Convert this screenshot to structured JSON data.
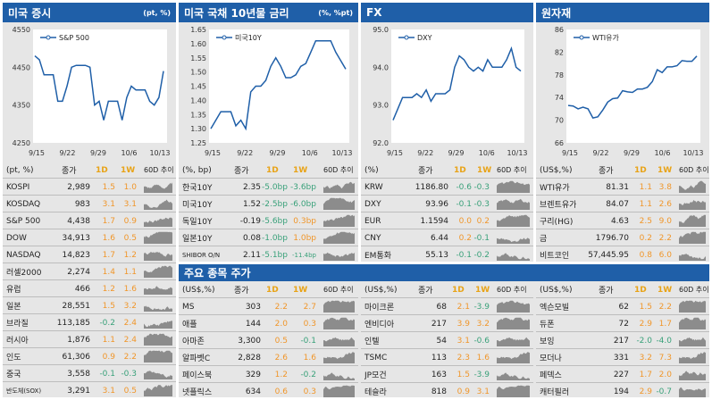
{
  "panels": {
    "us_stock": {
      "title": "미국 증시",
      "unit": "(pt, %)"
    },
    "us_bond": {
      "title": "미국 국채 10년물 금리",
      "unit": "(%, %pt)"
    },
    "fx": {
      "title": "FX",
      "unit": ""
    },
    "commodity": {
      "title": "원자재",
      "unit": ""
    },
    "major_stocks": {
      "title": "주요 종목 주가"
    }
  },
  "chart_data": [
    {
      "type": "line",
      "legend": "S&P 500",
      "ylim": [
        4250,
        4550
      ],
      "yticks": [
        "4550",
        "4450",
        "4350",
        "4250"
      ],
      "xticks": [
        "9/15",
        "9/22",
        "9/29",
        "10/6",
        "10/13"
      ],
      "values": [
        4480,
        4470,
        4430,
        4430,
        4430,
        4360,
        4360,
        4400,
        4450,
        4455,
        4455,
        4455,
        4450,
        4350,
        4360,
        4310,
        4360,
        4360,
        4360,
        4310,
        4370,
        4400,
        4390,
        4390,
        4390,
        4360,
        4350,
        4370,
        4440
      ]
    },
    {
      "type": "line",
      "legend": "미국10Y",
      "ylim": [
        1.25,
        1.65
      ],
      "yticks": [
        "1.65",
        "1.60",
        "1.55",
        "1.50",
        "1.45",
        "1.40",
        "1.35",
        "1.30",
        "1.25"
      ],
      "xticks": [
        "9/15",
        "9/22",
        "9/29",
        "10/6",
        "10/13"
      ],
      "values": [
        1.3,
        1.33,
        1.36,
        1.36,
        1.36,
        1.31,
        1.33,
        1.3,
        1.43,
        1.45,
        1.45,
        1.47,
        1.52,
        1.55,
        1.52,
        1.48,
        1.48,
        1.49,
        1.52,
        1.53,
        1.57,
        1.61,
        1.61,
        1.61,
        1.61,
        1.57,
        1.54,
        1.51
      ]
    },
    {
      "type": "line",
      "legend": "DXY",
      "ylim": [
        92.0,
        95.0
      ],
      "yticks": [
        "95.0",
        "94.0",
        "93.0",
        "92.0"
      ],
      "xticks": [
        "9/15",
        "9/22",
        "9/29",
        "10/6",
        "10/13"
      ],
      "values": [
        92.6,
        92.9,
        93.2,
        93.2,
        93.2,
        93.3,
        93.2,
        93.4,
        93.1,
        93.3,
        93.3,
        93.3,
        93.4,
        94.0,
        94.3,
        94.2,
        94.0,
        93.9,
        94.0,
        93.9,
        94.2,
        94.0,
        94.0,
        94.0,
        94.2,
        94.5,
        94.0,
        93.9
      ]
    },
    {
      "type": "line",
      "legend": "WTI유가",
      "ylim": [
        66,
        86
      ],
      "yticks": [
        "86",
        "82",
        "78",
        "74",
        "70",
        "66"
      ],
      "xticks": [
        "9/15",
        "9/22",
        "9/29",
        "10/6",
        "10/13"
      ],
      "values": [
        72.6,
        72.5,
        72.0,
        72.3,
        72.0,
        70.4,
        70.6,
        71.8,
        73.2,
        73.8,
        73.9,
        75.2,
        75.0,
        74.9,
        75.5,
        75.5,
        75.8,
        76.8,
        78.9,
        78.4,
        79.4,
        79.4,
        79.6,
        80.5,
        80.4,
        80.4,
        81.3
      ]
    }
  ],
  "stock_table": {
    "headers": [
      "(pt, %)",
      "종가",
      "1D",
      "1W",
      "60D 추이"
    ],
    "rows": [
      [
        "KOSPI",
        "2,989",
        "1.5",
        "1.0"
      ],
      [
        "KOSDAQ",
        "983",
        "3.1",
        "3.1"
      ],
      [
        "S&P 500",
        "4,438",
        "1.7",
        "0.9"
      ],
      [
        "DOW",
        "34,913",
        "1.6",
        "0.5"
      ],
      [
        "NASDAQ",
        "14,823",
        "1.7",
        "1.2"
      ],
      [
        "러셀2000",
        "2,274",
        "1.4",
        "1.1"
      ],
      [
        "유럽",
        "466",
        "1.2",
        "1.6"
      ],
      [
        "일본",
        "28,551",
        "1.5",
        "3.2"
      ],
      [
        "브라질",
        "113,185",
        "-0.2",
        "2.4"
      ],
      [
        "러시아",
        "1,876",
        "1.1",
        "2.4"
      ],
      [
        "인도",
        "61,306",
        "0.9",
        "2.2"
      ],
      [
        "중국",
        "3,558",
        "-0.1",
        "-0.3"
      ],
      [
        "반도체(SOX)",
        "3,291",
        "3.1",
        "0.5"
      ]
    ]
  },
  "bond_table": {
    "headers": [
      "(%, bp)",
      "종가",
      "1D",
      "1W",
      "60D 추이"
    ],
    "rows": [
      [
        "한국10Y",
        "2.35",
        "-5.0bp",
        "-3.6bp"
      ],
      [
        "미국10Y",
        "1.52",
        "-2.5bp",
        "-6.0bp"
      ],
      [
        "독일10Y",
        "-0.19",
        "-5.6bp",
        "0.3bp"
      ],
      [
        "일본10Y",
        "0.08",
        "-1.0bp",
        "1.0bp"
      ],
      [
        "SHIBOR O/N",
        "2.11",
        "-5.1bp",
        "-11.4bp"
      ]
    ]
  },
  "fx_table": {
    "headers": [
      "(%)",
      "종가",
      "1D",
      "1W",
      "60D 추이"
    ],
    "rows": [
      [
        "KRW",
        "1186.80",
        "-0.6",
        "-0.3"
      ],
      [
        "DXY",
        "93.96",
        "-0.1",
        "-0.3"
      ],
      [
        "EUR",
        "1.1594",
        "0.0",
        "0.2"
      ],
      [
        "CNY",
        "6.44",
        "0.2",
        "-0.1"
      ],
      [
        "EM통화",
        "55.13",
        "-0.1",
        "-0.2"
      ]
    ]
  },
  "commodity_table": {
    "headers": [
      "(US$,%)",
      "종가",
      "1D",
      "1W",
      "60D 추이"
    ],
    "rows": [
      [
        "WTI유가",
        "81.31",
        "1.1",
        "3.8"
      ],
      [
        "브렌트유가",
        "84.07",
        "1.1",
        "2.6"
      ],
      [
        "구리(HG)",
        "4.63",
        "2.5",
        "9.0"
      ],
      [
        "금",
        "1796.70",
        "0.2",
        "2.2"
      ],
      [
        "비트코인",
        "57,445.95",
        "0.8",
        "6.0"
      ]
    ]
  },
  "major1": {
    "headers": [
      "(US$,%)",
      "종가",
      "1D",
      "1W",
      "60D 추이"
    ],
    "rows": [
      [
        "MS",
        "303",
        "2.2",
        "2.7"
      ],
      [
        "애플",
        "144",
        "2.0",
        "0.3"
      ],
      [
        "아마존",
        "3,300",
        "0.5",
        "-0.1"
      ],
      [
        "알파벳C",
        "2,828",
        "2.6",
        "1.6"
      ],
      [
        "페이스북",
        "329",
        "1.2",
        "-0.2"
      ],
      [
        "넷플릭스",
        "634",
        "0.6",
        "0.3"
      ]
    ]
  },
  "major2": {
    "headers": [
      "(US$,%)",
      "종가",
      "1D",
      "1W",
      "60D 추이"
    ],
    "rows": [
      [
        "마이크론",
        "68",
        "2.1",
        "-3.9"
      ],
      [
        "엔비디아",
        "217",
        "3.9",
        "3.2"
      ],
      [
        "인텔",
        "54",
        "3.1",
        "-0.6"
      ],
      [
        "TSMC",
        "113",
        "2.3",
        "1.6"
      ],
      [
        "JP모건",
        "163",
        "1.5",
        "-3.9"
      ],
      [
        "테슬라",
        "818",
        "0.9",
        "3.1"
      ]
    ]
  },
  "major3": {
    "headers": [
      "(US$,%)",
      "종가",
      "1D",
      "1W",
      "60D 추이"
    ],
    "rows": [
      [
        "엑슨모빌",
        "62",
        "1.5",
        "2.2"
      ],
      [
        "듀폰",
        "72",
        "2.9",
        "1.7"
      ],
      [
        "보잉",
        "217",
        "-2.0",
        "-4.0"
      ],
      [
        "모더나",
        "331",
        "3.2",
        "7.3"
      ],
      [
        "페덱스",
        "227",
        "1.7",
        "2.0"
      ],
      [
        "캐터필러",
        "194",
        "2.9",
        "-0.7"
      ]
    ]
  }
}
